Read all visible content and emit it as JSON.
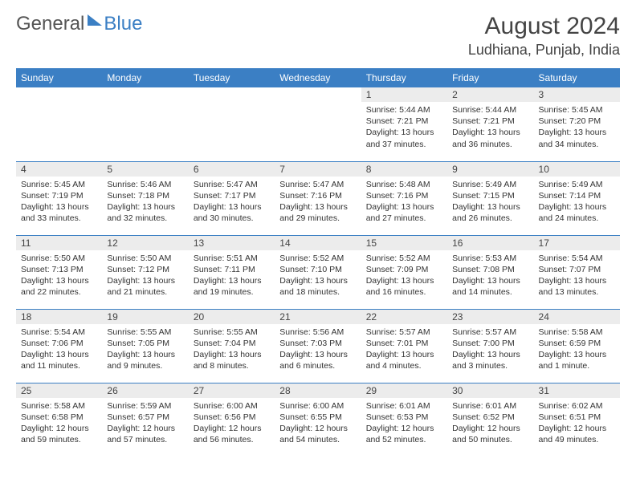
{
  "brand": {
    "part1": "General",
    "part2": "Blue"
  },
  "title": "August 2024",
  "location": "Ludhiana, Punjab, India",
  "colors": {
    "header_bg": "#3b7fc4",
    "header_text": "#ffffff",
    "daynum_bg": "#ececec",
    "body_text": "#333333",
    "divider": "#3b7fc4"
  },
  "day_headers": [
    "Sunday",
    "Monday",
    "Tuesday",
    "Wednesday",
    "Thursday",
    "Friday",
    "Saturday"
  ],
  "weeks": [
    [
      null,
      null,
      null,
      null,
      {
        "n": "1",
        "sr": "5:44 AM",
        "ss": "7:21 PM",
        "dl": "13 hours and 37 minutes."
      },
      {
        "n": "2",
        "sr": "5:44 AM",
        "ss": "7:21 PM",
        "dl": "13 hours and 36 minutes."
      },
      {
        "n": "3",
        "sr": "5:45 AM",
        "ss": "7:20 PM",
        "dl": "13 hours and 34 minutes."
      }
    ],
    [
      {
        "n": "4",
        "sr": "5:45 AM",
        "ss": "7:19 PM",
        "dl": "13 hours and 33 minutes."
      },
      {
        "n": "5",
        "sr": "5:46 AM",
        "ss": "7:18 PM",
        "dl": "13 hours and 32 minutes."
      },
      {
        "n": "6",
        "sr": "5:47 AM",
        "ss": "7:17 PM",
        "dl": "13 hours and 30 minutes."
      },
      {
        "n": "7",
        "sr": "5:47 AM",
        "ss": "7:16 PM",
        "dl": "13 hours and 29 minutes."
      },
      {
        "n": "8",
        "sr": "5:48 AM",
        "ss": "7:16 PM",
        "dl": "13 hours and 27 minutes."
      },
      {
        "n": "9",
        "sr": "5:49 AM",
        "ss": "7:15 PM",
        "dl": "13 hours and 26 minutes."
      },
      {
        "n": "10",
        "sr": "5:49 AM",
        "ss": "7:14 PM",
        "dl": "13 hours and 24 minutes."
      }
    ],
    [
      {
        "n": "11",
        "sr": "5:50 AM",
        "ss": "7:13 PM",
        "dl": "13 hours and 22 minutes."
      },
      {
        "n": "12",
        "sr": "5:50 AM",
        "ss": "7:12 PM",
        "dl": "13 hours and 21 minutes."
      },
      {
        "n": "13",
        "sr": "5:51 AM",
        "ss": "7:11 PM",
        "dl": "13 hours and 19 minutes."
      },
      {
        "n": "14",
        "sr": "5:52 AM",
        "ss": "7:10 PM",
        "dl": "13 hours and 18 minutes."
      },
      {
        "n": "15",
        "sr": "5:52 AM",
        "ss": "7:09 PM",
        "dl": "13 hours and 16 minutes."
      },
      {
        "n": "16",
        "sr": "5:53 AM",
        "ss": "7:08 PM",
        "dl": "13 hours and 14 minutes."
      },
      {
        "n": "17",
        "sr": "5:54 AM",
        "ss": "7:07 PM",
        "dl": "13 hours and 13 minutes."
      }
    ],
    [
      {
        "n": "18",
        "sr": "5:54 AM",
        "ss": "7:06 PM",
        "dl": "13 hours and 11 minutes."
      },
      {
        "n": "19",
        "sr": "5:55 AM",
        "ss": "7:05 PM",
        "dl": "13 hours and 9 minutes."
      },
      {
        "n": "20",
        "sr": "5:55 AM",
        "ss": "7:04 PM",
        "dl": "13 hours and 8 minutes."
      },
      {
        "n": "21",
        "sr": "5:56 AM",
        "ss": "7:03 PM",
        "dl": "13 hours and 6 minutes."
      },
      {
        "n": "22",
        "sr": "5:57 AM",
        "ss": "7:01 PM",
        "dl": "13 hours and 4 minutes."
      },
      {
        "n": "23",
        "sr": "5:57 AM",
        "ss": "7:00 PM",
        "dl": "13 hours and 3 minutes."
      },
      {
        "n": "24",
        "sr": "5:58 AM",
        "ss": "6:59 PM",
        "dl": "13 hours and 1 minute."
      }
    ],
    [
      {
        "n": "25",
        "sr": "5:58 AM",
        "ss": "6:58 PM",
        "dl": "12 hours and 59 minutes."
      },
      {
        "n": "26",
        "sr": "5:59 AM",
        "ss": "6:57 PM",
        "dl": "12 hours and 57 minutes."
      },
      {
        "n": "27",
        "sr": "6:00 AM",
        "ss": "6:56 PM",
        "dl": "12 hours and 56 minutes."
      },
      {
        "n": "28",
        "sr": "6:00 AM",
        "ss": "6:55 PM",
        "dl": "12 hours and 54 minutes."
      },
      {
        "n": "29",
        "sr": "6:01 AM",
        "ss": "6:53 PM",
        "dl": "12 hours and 52 minutes."
      },
      {
        "n": "30",
        "sr": "6:01 AM",
        "ss": "6:52 PM",
        "dl": "12 hours and 50 minutes."
      },
      {
        "n": "31",
        "sr": "6:02 AM",
        "ss": "6:51 PM",
        "dl": "12 hours and 49 minutes."
      }
    ]
  ],
  "labels": {
    "sunrise": "Sunrise:",
    "sunset": "Sunset:",
    "daylight": "Daylight:"
  }
}
